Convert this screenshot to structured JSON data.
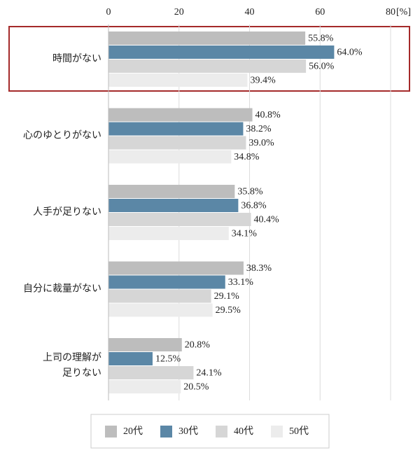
{
  "chart_data": {
    "type": "hbar",
    "x_label": "[%]",
    "categories": [
      "時間がない",
      "心のゆとりがない",
      "人手が足りない",
      "自分に裁量がない",
      "上司の理解が\n足りない"
    ],
    "series": [
      {
        "name": "20代",
        "color": "#bdbdbd",
        "values": [
          55.8,
          40.8,
          35.8,
          38.3,
          20.8
        ],
        "value_labels": [
          "55.8%",
          "40.8%",
          "35.8%",
          "38.3%",
          "20.8%"
        ]
      },
      {
        "name": "30代",
        "color": "#5b87a6",
        "values": [
          64.0,
          38.2,
          36.8,
          33.1,
          12.5
        ],
        "value_labels": [
          "64.0%",
          "38.2%",
          "36.8%",
          "33.1%",
          "12.5%"
        ]
      },
      {
        "name": "40代",
        "color": "#d6d6d6",
        "values": [
          56.0,
          39.0,
          40.4,
          29.1,
          24.1
        ],
        "value_labels": [
          "56.0%",
          "39.0%",
          "40.4%",
          "29.1%",
          "24.1%"
        ]
      },
      {
        "name": "50代",
        "color": "#ececec",
        "values": [
          39.4,
          34.8,
          34.1,
          29.5,
          20.5
        ],
        "value_labels": [
          "39.4%",
          "34.8%",
          "34.1%",
          "29.5%",
          "20.5%"
        ]
      }
    ],
    "xlim": [
      0,
      80
    ],
    "xticks": [
      0,
      20,
      40,
      60,
      80
    ],
    "grid": true,
    "legend": "bottom"
  }
}
